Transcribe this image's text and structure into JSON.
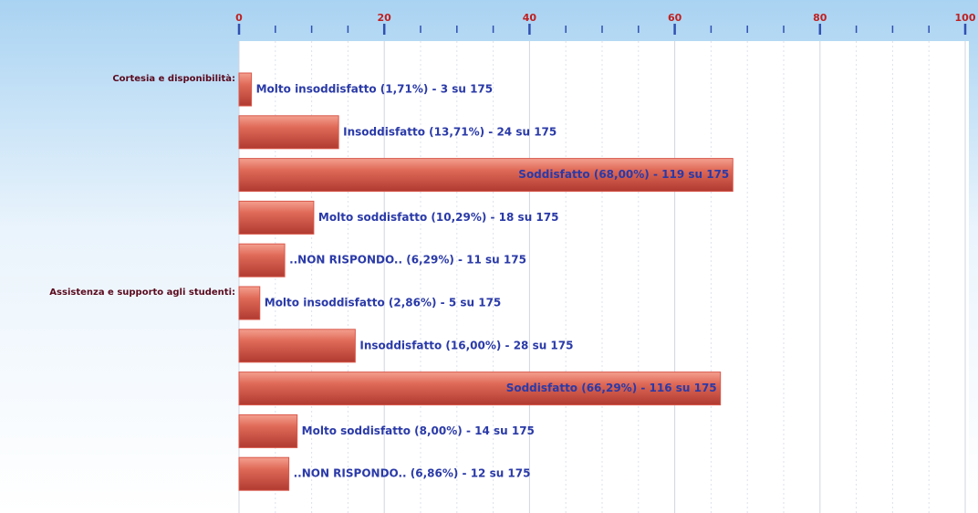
{
  "chart_data": {
    "type": "barh",
    "categories": [
      "Cortesia e disponibilità:",
      null,
      null,
      null,
      null,
      "Assistenza e supporto agli studenti:",
      null,
      null,
      null,
      null
    ],
    "values": [
      1.71,
      13.71,
      68.0,
      10.29,
      6.29,
      2.86,
      16.0,
      66.29,
      8.0,
      6.86
    ],
    "value_labels": [
      "Molto insoddisfatto (1,71%) - 3 su 175",
      "Insoddisfatto (13,71%) - 24 su 175",
      "Soddisfatto (68,00%) - 119 su 175",
      "Molto soddisfatto (10,29%) - 18 su 175",
      "..NON RISPONDO.. (6,29%) - 11 su 175",
      "Molto insoddisfatto (2,86%) - 5 su 175",
      "Insoddisfatto (16,00%) - 28 su 175",
      "Soddisfatto (66,29%) - 116 su 175",
      "Molto soddisfatto (8,00%) - 14 su 175",
      "..NON RISPONDO.. (6,86%) - 12 su 175"
    ],
    "color": "#d9574a",
    "xlim": [
      0,
      100
    ],
    "xticks": [
      0,
      20,
      40,
      60,
      80,
      100
    ],
    "grid": true
  }
}
